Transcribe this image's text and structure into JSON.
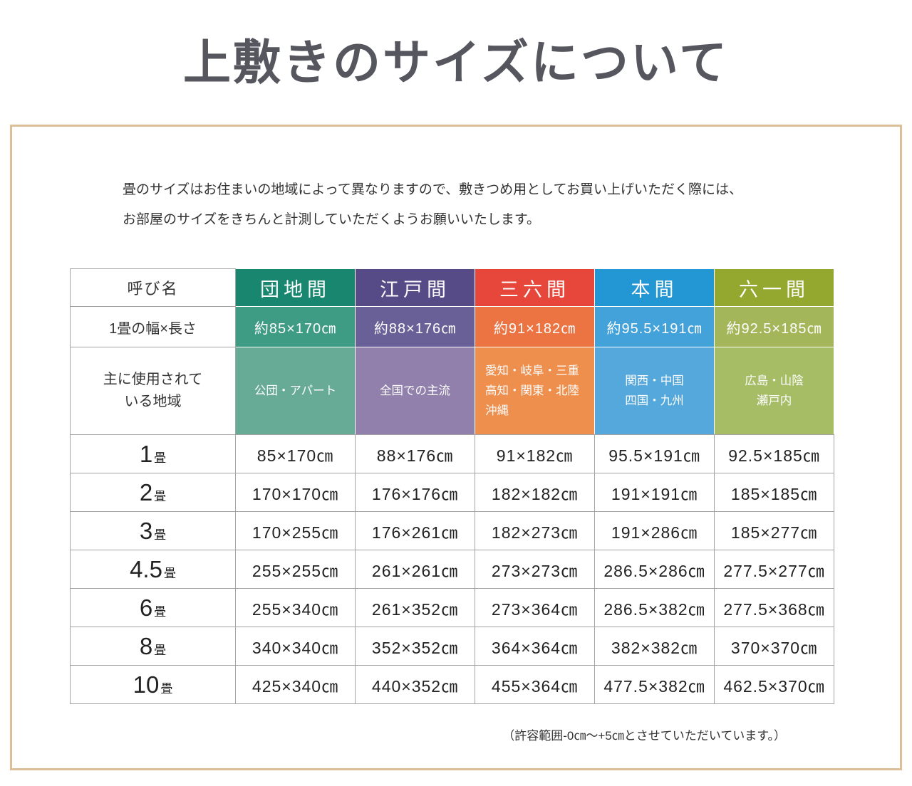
{
  "page": {
    "title": "上敷きのサイズについて",
    "intro_line1": "畳のサイズはお住まいの地域によって異なりますので、敷きつめ用としてお買い上げいただく際には、",
    "intro_line2": "お部屋のサイズをきちんと計測していただくようお願いいたします。",
    "footnote": "（許容範囲-0㎝〜+5㎝とさせていただいています。）"
  },
  "table": {
    "corner_label": "呼び名",
    "width_label": "1畳の幅×長さ",
    "region_label_line1": "主に使用されて",
    "region_label_line2": "いる地域",
    "unit_suffix": "畳",
    "grid_color": "#a3a3a3",
    "panel_border_color": "#dcbe99",
    "columns": [
      {
        "name": "団地間",
        "header_color": "#19866f",
        "size_color": "#3e9c85",
        "region_color": "#67ab97",
        "size": "約85×170㎝",
        "regions": [
          "公団・アパート"
        ]
      },
      {
        "name": "江戸間",
        "header_color": "#564a87",
        "size_color": "#6a6098",
        "region_color": "#9080ab",
        "size": "約88×176㎝",
        "regions": [
          "全国での主流"
        ]
      },
      {
        "name": "三六間",
        "header_color": "#e7473b",
        "size_color": "#ec7342",
        "region_color": "#ef8f4d",
        "size": "約91×182㎝",
        "regions": [
          "愛知・岐阜・三重",
          "高知・関東・北陸",
          "沖縄"
        ]
      },
      {
        "name": "本間",
        "header_color": "#2397d4",
        "size_color": "#42a2d9",
        "region_color": "#55a8db",
        "size": "約95.5×191㎝",
        "regions": [
          "関西・中国",
          "四国・九州"
        ]
      },
      {
        "name": "六一間",
        "header_color": "#94a72e",
        "size_color": "#a3b75a",
        "region_color": "#a6bd66",
        "size": "約92.5×185㎝",
        "regions": [
          "広島・山陰",
          "瀬戸内"
        ]
      }
    ],
    "size_rows": [
      {
        "label_num": "1",
        "values": [
          "85×170㎝",
          "88×176㎝",
          "91×182㎝",
          "95.5×191㎝",
          "92.5×185㎝"
        ]
      },
      {
        "label_num": "2",
        "values": [
          "170×170㎝",
          "176×176㎝",
          "182×182㎝",
          "191×191㎝",
          "185×185㎝"
        ]
      },
      {
        "label_num": "3",
        "values": [
          "170×255㎝",
          "176×261㎝",
          "182×273㎝",
          "191×286㎝",
          "185×277㎝"
        ]
      },
      {
        "label_num": "4.5",
        "values": [
          "255×255㎝",
          "261×261㎝",
          "273×273㎝",
          "286.5×286㎝",
          "277.5×277㎝"
        ]
      },
      {
        "label_num": "6",
        "values": [
          "255×340㎝",
          "261×352㎝",
          "273×364㎝",
          "286.5×382㎝",
          "277.5×368㎝"
        ]
      },
      {
        "label_num": "8",
        "values": [
          "340×340㎝",
          "352×352㎝",
          "364×364㎝",
          "382×382㎝",
          "370×370㎝"
        ]
      },
      {
        "label_num": "10",
        "values": [
          "425×340㎝",
          "440×352㎝",
          "455×364㎝",
          "477.5×382㎝",
          "462.5×370㎝"
        ]
      }
    ]
  }
}
